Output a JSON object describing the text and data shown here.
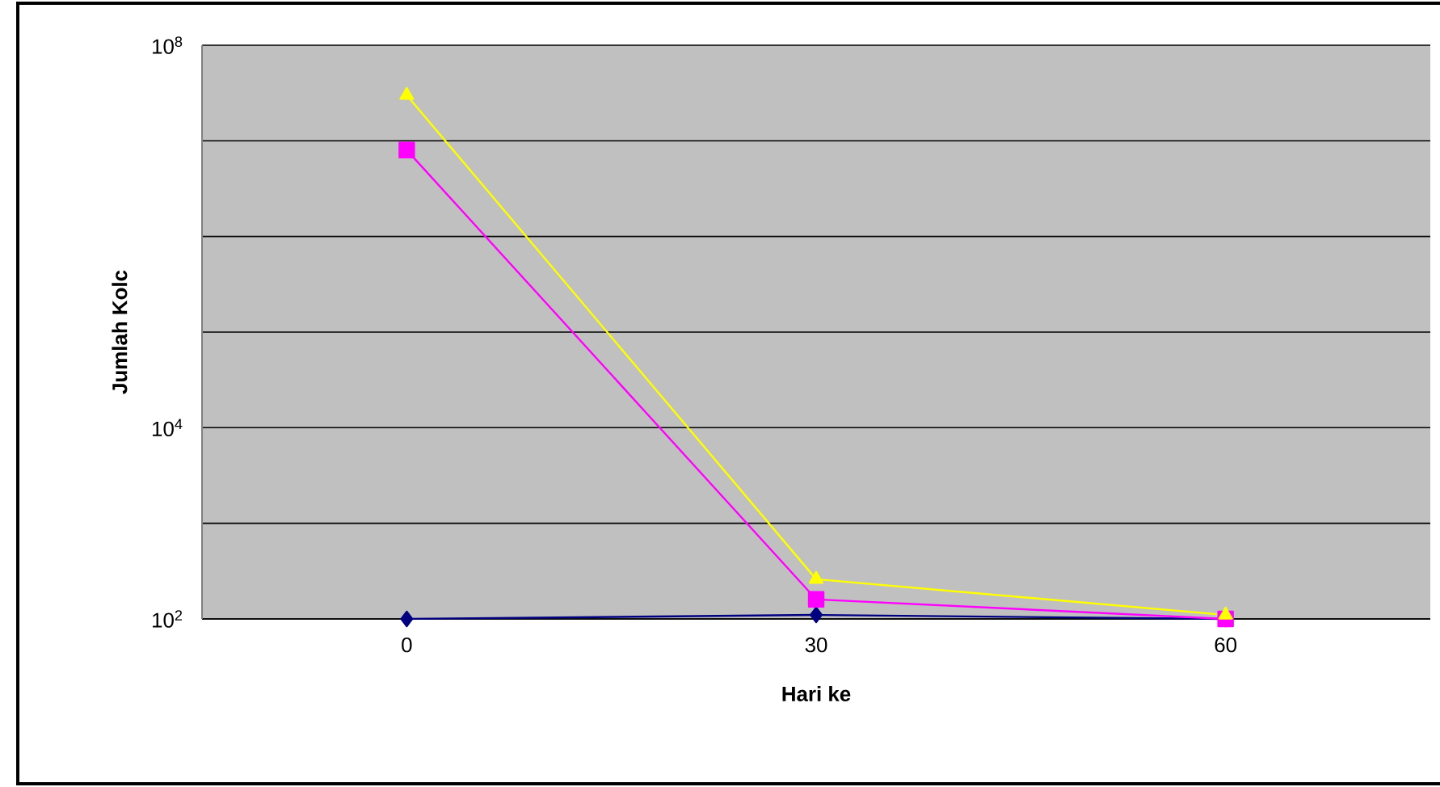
{
  "chart_data": {
    "type": "line",
    "xlabel": "Hari ke",
    "ylabel": "Jumlah Kolc",
    "categories": [
      "0",
      "30",
      "60"
    ],
    "series": [
      {
        "color": "#000080",
        "marker": "diamond",
        "values": [
          100,
          110,
          100
        ]
      },
      {
        "color": "#ff00ff",
        "marker": "square",
        "values": [
          8000000,
          160,
          100
        ]
      },
      {
        "color": "#ffff00",
        "marker": "triangle",
        "values": [
          30000000,
          260,
          110
        ]
      }
    ],
    "log": "y",
    "ylim": [
      100,
      100000000
    ],
    "yticks": [
      {
        "value": 100,
        "label": "10$^{2}$"
      },
      {
        "value": 1000,
        "label": null
      },
      {
        "value": 10000,
        "label": "10$^{4}$"
      },
      {
        "value": 100000,
        "label": null
      },
      {
        "value": 1000000,
        "label": null
      },
      {
        "value": 10000000,
        "label": null
      },
      {
        "value": 100000000,
        "label": "10$^{8}$"
      }
    ],
    "grid": "y",
    "line_style": "solid"
  }
}
